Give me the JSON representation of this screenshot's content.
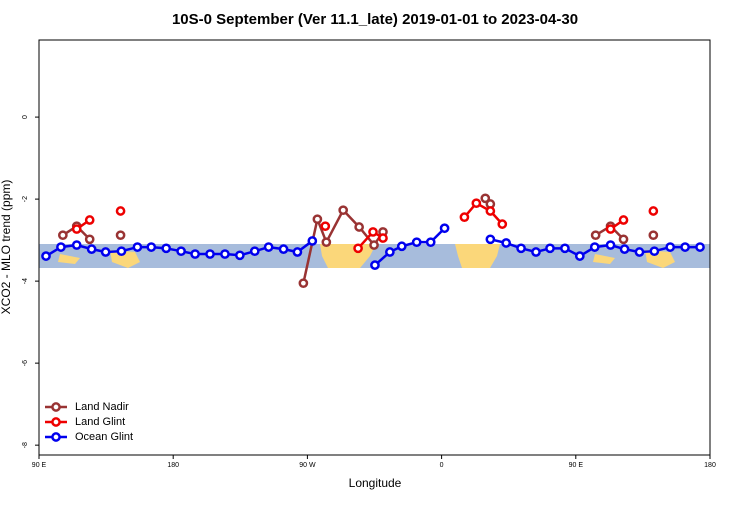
{
  "chart_data": {
    "type": "line",
    "title": "10S-0 September (Ver 11.1_late)   2019-01-01 to 2023-04-30",
    "xlabel": "Longitude",
    "ylabel": "XCO2 - MLO trend (ppm)",
    "xlim": [
      90,
      540
    ],
    "ylim": [
      -8.24,
      1.88
    ],
    "xticks": [
      {
        "value": 90,
        "label": "90 E"
      },
      180,
      {
        "value": 270,
        "label": "90 W"
      },
      {
        "value": 360,
        "label": "0"
      },
      {
        "value": 450,
        "label": "90 E"
      },
      {
        "value": 540,
        "label": "180"
      }
    ],
    "yticks": [
      0,
      -2,
      -4,
      -6,
      -8
    ],
    "legend": "bottom-left",
    "series": [
      {
        "name": "Land Nadir",
        "color": "#993333",
        "x": [
          106,
          115.3,
          124,
          null,
          144.7,
          null,
          267.3,
          276.7,
          282.7,
          294,
          304.7,
          314.7,
          320.7,
          null,
          389.3,
          392.7,
          null,
          463.3,
          473.3,
          482,
          null,
          502
        ],
        "values": [
          -2.88,
          -2.66,
          -2.98,
          null,
          -2.88,
          null,
          -4.05,
          -2.49,
          -3.05,
          -2.27,
          -2.68,
          -3.12,
          -2.8,
          null,
          -1.98,
          -2.12,
          null,
          -2.88,
          -2.66,
          -2.98,
          null,
          -2.88
        ]
      },
      {
        "name": "Land Glint",
        "color": "#ee0000",
        "x": [
          115.3,
          124,
          null,
          144.7,
          null,
          282,
          null,
          304,
          314,
          320.7,
          null,
          375.3,
          383.3,
          392.7,
          400.7,
          null,
          473.3,
          482,
          null,
          502
        ],
        "values": [
          -2.73,
          -2.51,
          null,
          -2.29,
          null,
          -2.66,
          null,
          -3.2,
          -2.8,
          -2.95,
          null,
          -2.44,
          -2.1,
          -2.29,
          -2.61,
          null,
          -2.73,
          -2.51,
          null,
          -2.29
        ]
      },
      {
        "name": "Ocean Glint",
        "color": "#0000ee",
        "x": [
          94.7,
          104.7,
          115.3,
          125.3,
          134.7,
          145.3,
          156,
          165.3,
          175.3,
          185.3,
          194.7,
          204.7,
          214.7,
          224.7,
          234.7,
          244,
          254,
          263.3,
          273.3,
          null,
          315.3,
          325.3,
          333.3,
          343.3,
          352.7,
          362,
          null,
          392.7,
          403.3,
          413.3,
          423.3,
          432.7,
          442.7,
          452.7,
          462.7,
          473.3,
          482.7,
          492.7,
          502.7,
          513.3,
          523.3,
          533.3
        ],
        "values": [
          -3.39,
          -3.17,
          -3.12,
          -3.22,
          -3.29,
          -3.27,
          -3.17,
          -3.17,
          -3.2,
          -3.27,
          -3.34,
          -3.34,
          -3.34,
          -3.37,
          -3.27,
          -3.17,
          -3.22,
          -3.29,
          -3.02,
          null,
          -3.61,
          -3.29,
          -3.15,
          -3.05,
          -3.05,
          -2.71,
          null,
          -2.98,
          -3.07,
          -3.2,
          -3.29,
          -3.2,
          -3.2,
          -3.39,
          -3.17,
          -3.12,
          -3.22,
          -3.29,
          -3.27,
          -3.17,
          -3.17,
          -3.17
        ]
      }
    ]
  }
}
